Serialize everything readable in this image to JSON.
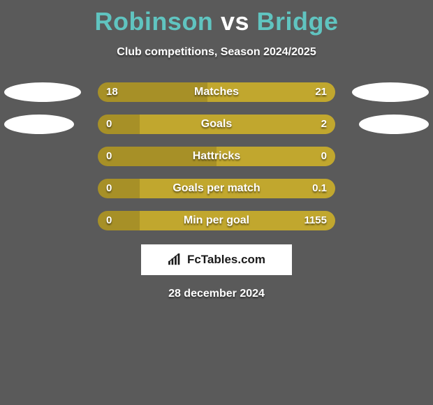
{
  "title": {
    "player1": "Robinson",
    "vs": "vs",
    "player2": "Bridge"
  },
  "subtitle": "Club competitions, Season 2024/2025",
  "colors": {
    "left_bar": "#a79027",
    "right_bar": "#c1a72e",
    "background": "#5a5a5a",
    "accent": "#60c4c0",
    "ellipse": "#ffffff"
  },
  "bar": {
    "track_width": 340,
    "track_height": 28,
    "radius": 14
  },
  "rows": [
    {
      "label": "Matches",
      "left_val": "18",
      "right_val": "21",
      "left_w": 157,
      "right_w": 183,
      "show_left_ellipse": true,
      "show_right_ellipse": true,
      "ellipse_left_w": 110,
      "ellipse_right_w": 110
    },
    {
      "label": "Goals",
      "left_val": "0",
      "right_val": "2",
      "left_w": 60,
      "right_w": 280,
      "show_left_ellipse": true,
      "show_right_ellipse": true,
      "ellipse_left_w": 100,
      "ellipse_right_w": 100
    },
    {
      "label": "Hattricks",
      "left_val": "0",
      "right_val": "0",
      "left_w": 170,
      "right_w": 170,
      "show_left_ellipse": false,
      "show_right_ellipse": false,
      "ellipse_left_w": 0,
      "ellipse_right_w": 0
    },
    {
      "label": "Goals per match",
      "left_val": "0",
      "right_val": "0.1",
      "left_w": 60,
      "right_w": 280,
      "show_left_ellipse": false,
      "show_right_ellipse": false,
      "ellipse_left_w": 0,
      "ellipse_right_w": 0
    },
    {
      "label": "Min per goal",
      "left_val": "0",
      "right_val": "1155",
      "left_w": 60,
      "right_w": 280,
      "show_left_ellipse": false,
      "show_right_ellipse": false,
      "ellipse_left_w": 0,
      "ellipse_right_w": 0
    }
  ],
  "brand": "FcTables.com",
  "date": "28 december 2024"
}
